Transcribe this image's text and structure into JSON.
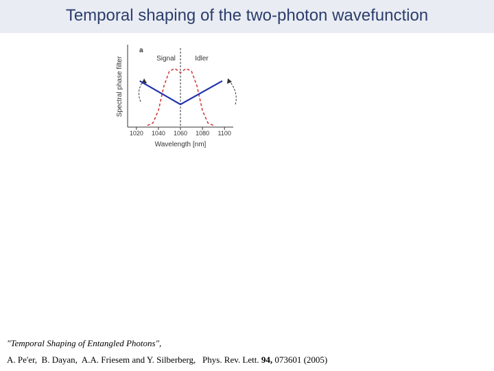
{
  "header": {
    "title": "Temporal shaping of the two-photon wavefunction"
  },
  "chart_data": {
    "type": "line",
    "annotations": [
      "a",
      "Signal",
      "Idler"
    ],
    "xlabel": "Wavelength [nm]",
    "ylabel": "Spectral phase filter",
    "xlim": [
      1012,
      1108
    ],
    "ylim": [
      0,
      1
    ],
    "xticks": [
      1020,
      1040,
      1060,
      1080,
      1100
    ],
    "series": [
      {
        "color": "#2233aa",
        "x": [
          1023,
          1060,
          1098
        ],
        "values": [
          0.56,
          0.275,
          0.56
        ]
      },
      {
        "color": "#d03030",
        "x": [
          1030,
          1035,
          1040,
          1045,
          1050,
          1055,
          1060,
          1065,
          1070,
          1075,
          1080,
          1085,
          1090
        ],
        "values": [
          0.02,
          0.05,
          0.2,
          0.5,
          0.68,
          0.71,
          0.66,
          0.71,
          0.68,
          0.5,
          0.2,
          0.05,
          0.02
        ]
      }
    ]
  },
  "reference": {
    "title": "\"Temporal Shaping of Entangled Photons\",",
    "authors": "A. Pe'er,  B. Dayan,  A.A. Friesem and Y. Silberberg,   Phys. Rev. Lett.",
    "volume": "94,",
    "pages": "073601 (2005)"
  }
}
